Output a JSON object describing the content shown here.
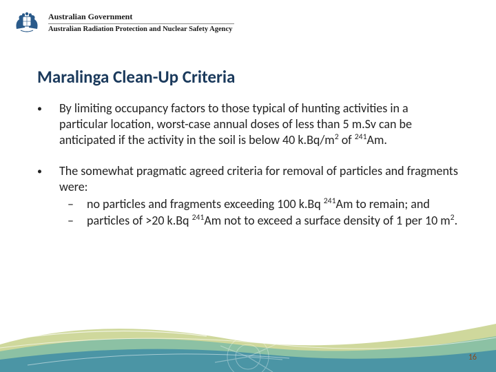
{
  "header": {
    "gov": "Australian Government",
    "agency": "Australian Radiation Protection and Nuclear Safety Agency"
  },
  "title": "Maralinga Clean-Up Criteria",
  "bullets": [
    {
      "text_html": "By limiting occupancy factors to those typical of hunting activities in a particular location, worst-case annual doses of less than 5 m.Sv can be anticipated if the activity in the soil is below 40 k.Bq/m<sup>2</sup> of <sup>241</sup>Am."
    },
    {
      "text_html": "The somewhat pragmatic agreed criteria for removal of particles and fragments were:",
      "subs": [
        "no particles and fragments exceeding 100 k.Bq <sup>241</sup>Am to remain; and",
        "particles of >20 k.Bq <sup>241</sup>Am not to exceed a surface density of 1 per 10 m<sup>2</sup>."
      ]
    }
  ],
  "page_number": "16",
  "colors": {
    "title": "#1b3a5c",
    "footer_blue": "#0a6aa6",
    "footer_teal": "#3aa6b0",
    "footer_olive": "#a8b84a"
  }
}
